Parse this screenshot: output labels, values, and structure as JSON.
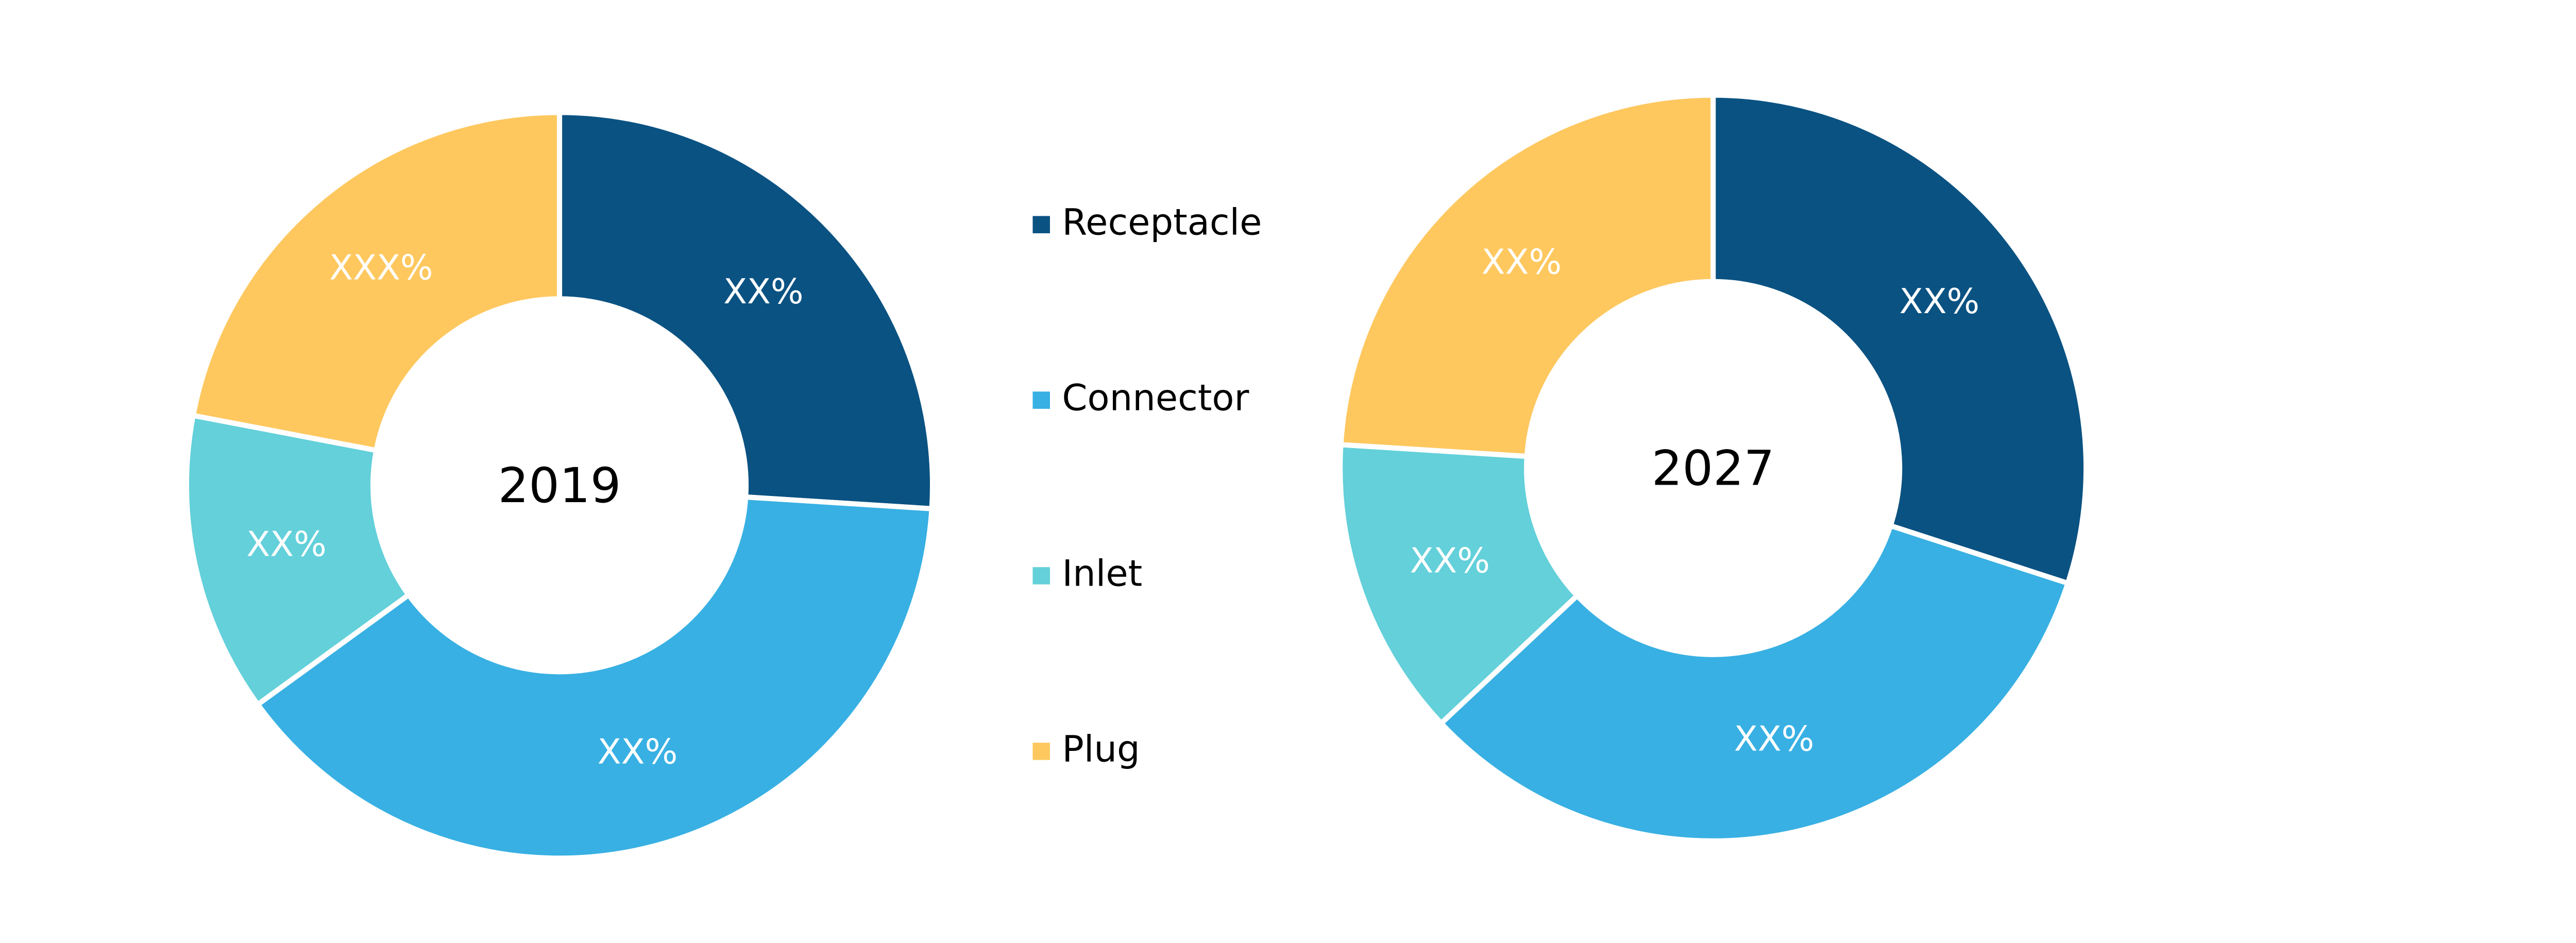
{
  "chart_data": [
    {
      "type": "pie",
      "title": "2019",
      "categories": [
        "Receptacle",
        "Connector",
        "Inlet",
        "Plug"
      ],
      "values": [
        26,
        39,
        13,
        22
      ],
      "value_labels": [
        "XX%",
        "XX%",
        "XX%",
        "XXX%"
      ],
      "colors": [
        "#0a5282",
        "#38b0e3",
        "#63d0da",
        "#fec85f"
      ],
      "legend": true
    },
    {
      "type": "pie",
      "title": "2027",
      "categories": [
        "Receptacle",
        "Connector",
        "Inlet",
        "Plug"
      ],
      "values": [
        30,
        33,
        13,
        24
      ],
      "value_labels": [
        "XX%",
        "XX%",
        "XX%",
        "XX%"
      ],
      "colors": [
        "#0a5282",
        "#38b0e3",
        "#63d0da",
        "#fec85f"
      ],
      "legend": false
    }
  ]
}
